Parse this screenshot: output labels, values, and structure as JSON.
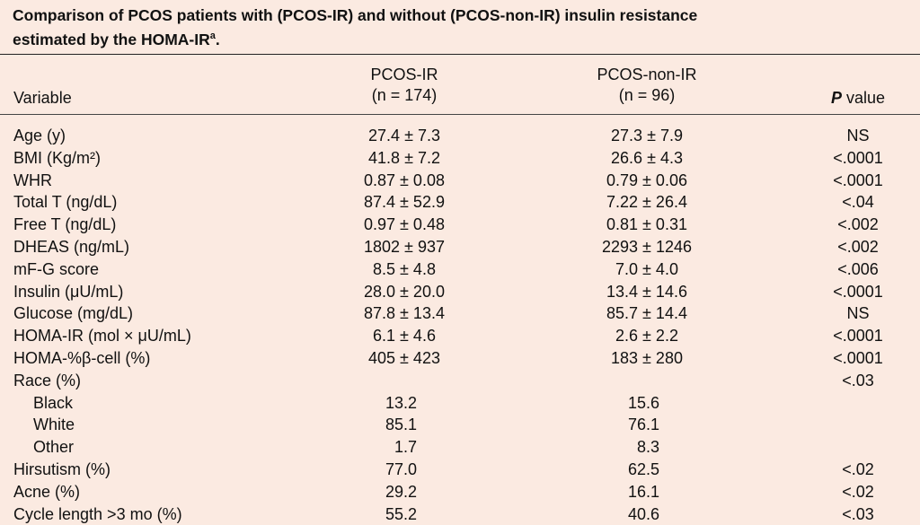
{
  "caption": {
    "line1": "Comparison of PCOS patients with (PCOS-IR) and without (PCOS-non-IR) insulin resistance",
    "line2_prefix": "estimated by the HOMA-IR",
    "line2_sup": "a",
    "line2_suffix": "."
  },
  "header": {
    "variable": "Variable",
    "ir_line1": "PCOS-IR",
    "ir_line2": "(n = 174)",
    "non_line1": "PCOS-non-IR",
    "non_line2": "(n = 96)",
    "p_italic": "P",
    "p_rest": " value"
  },
  "rows": [
    {
      "variable": "Age (y)",
      "ir": "27.4 ± 7.3",
      "non": "27.3 ± 7.9",
      "p": "NS"
    },
    {
      "variable": "BMI (Kg/m²)",
      "ir": "41.8 ± 7.2",
      "non": "26.6 ± 4.3",
      "p": "<.0001"
    },
    {
      "variable": "WHR",
      "ir": "0.87 ± 0.08",
      "non": "0.79 ± 0.06",
      "p": "<.0001"
    },
    {
      "variable": "Total T (ng/dL)",
      "ir": "87.4 ± 52.9",
      "non": "7.22 ± 26.4",
      "p": "<.04"
    },
    {
      "variable": "Free T (ng/dL)",
      "ir": "0.97 ± 0.48",
      "non": "0.81 ± 0.31",
      "p": "<.002"
    },
    {
      "variable": "DHEAS (ng/mL)",
      "ir": "1802 ± 937",
      "non": "2293 ± 1246",
      "p": "<.002"
    },
    {
      "variable": "mF-G score",
      "ir": "8.5 ± 4.8",
      "non": "7.0 ± 4.0",
      "p": "<.006"
    },
    {
      "variable": "Insulin (μU/mL)",
      "ir": "28.0 ± 20.0",
      "non": "13.4 ± 14.6",
      "p": "<.0001"
    },
    {
      "variable": "Glucose (mg/dL)",
      "ir": "87.8 ± 13.4",
      "non": "85.7 ± 14.4",
      "p": "NS"
    },
    {
      "variable": "HOMA-IR (mol × μU/mL)",
      "ir": "6.1 ± 4.6",
      "non": "2.6 ± 2.2",
      "p": "<.0001"
    },
    {
      "variable": "HOMA-%β-cell (%)",
      "ir": "405 ± 423",
      "non": "183 ± 280",
      "p": "<.0001"
    },
    {
      "variable": "Race (%)",
      "ir": "",
      "non": "",
      "p": "<.03"
    },
    {
      "variable": "Black",
      "ir": "13.2",
      "non": "15.6",
      "p": "",
      "indent": true,
      "numeric": true
    },
    {
      "variable": "White",
      "ir": "85.1",
      "non": "76.1",
      "p": "",
      "indent": true,
      "numeric": true
    },
    {
      "variable": "Other",
      "ir": "1.7",
      "non": "8.3",
      "p": "",
      "indent": true,
      "numeric": true
    },
    {
      "variable": "Hirsutism (%)",
      "ir": "77.0",
      "non": "62.5",
      "p": "<.02",
      "numeric": true
    },
    {
      "variable": "Acne (%)",
      "ir": "29.2",
      "non": "16.1",
      "p": "<.02",
      "numeric": true
    },
    {
      "variable": "Cycle length >3 mo (%)",
      "ir": "55.2",
      "non": "40.6",
      "p": "<.03",
      "numeric": true
    }
  ]
}
